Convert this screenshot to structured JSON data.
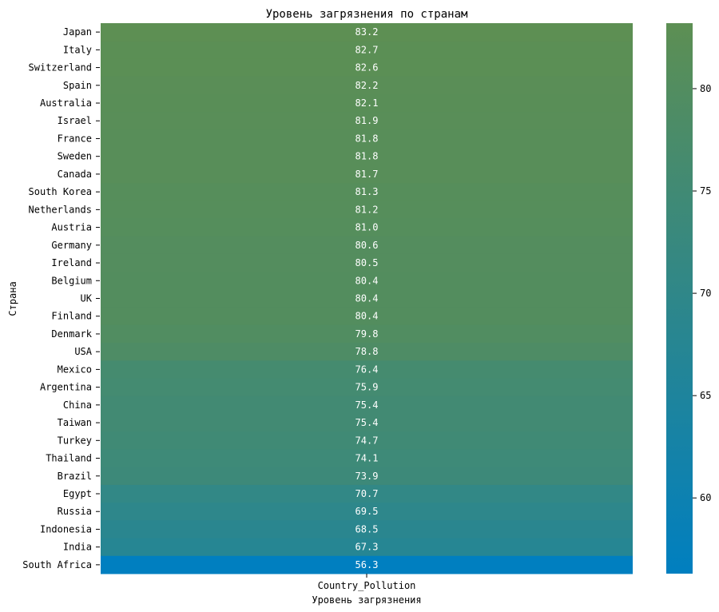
{
  "chart_data": {
    "type": "heatmap",
    "title": "Уровень загрязнения по странам",
    "xlabel": "Уровень загрязнения",
    "ylabel": "Страна",
    "columns": [
      "Country_Pollution"
    ],
    "rows": [
      "Japan",
      "Italy",
      "Switzerland",
      "Spain",
      "Australia",
      "Israel",
      "France",
      "Sweden",
      "Canada",
      "South Korea",
      "Netherlands",
      "Austria",
      "Germany",
      "Ireland",
      "Belgium",
      "UK",
      "Finland",
      "Denmark",
      "USA",
      "Mexico",
      "Argentina",
      "China",
      "Taiwan",
      "Turkey",
      "Thailand",
      "Brazil",
      "Egypt",
      "Russia",
      "Indonesia",
      "India",
      "South Africa"
    ],
    "values": [
      83.2,
      82.7,
      82.6,
      82.2,
      82.1,
      81.9,
      81.8,
      81.8,
      81.7,
      81.3,
      81.2,
      81.0,
      80.6,
      80.5,
      80.4,
      80.4,
      80.4,
      79.8,
      78.8,
      76.4,
      75.9,
      75.4,
      75.4,
      74.7,
      74.1,
      73.9,
      70.7,
      69.5,
      68.5,
      67.3,
      56.3
    ],
    "value_labels": [
      "83.2",
      "82.7",
      "82.6",
      "82.2",
      "82.1",
      "81.9",
      "81.8",
      "81.8",
      "81.7",
      "81.3",
      "81.2",
      "81.0",
      "80.6",
      "80.5",
      "80.4",
      "80.4",
      "80.4",
      "79.8",
      "78.8",
      "76.4",
      "75.9",
      "75.4",
      "75.4",
      "74.7",
      "74.1",
      "73.9",
      "70.7",
      "69.5",
      "68.5",
      "67.3",
      "56.3"
    ],
    "colorbar": {
      "min": 56.3,
      "max": 83.2,
      "ticks": [
        60,
        65,
        70,
        75,
        80
      ],
      "tick_labels": [
        "60",
        "65",
        "70",
        "75",
        "80"
      ],
      "color_low": "#007fc0",
      "color_high": "#5d8f53"
    }
  }
}
